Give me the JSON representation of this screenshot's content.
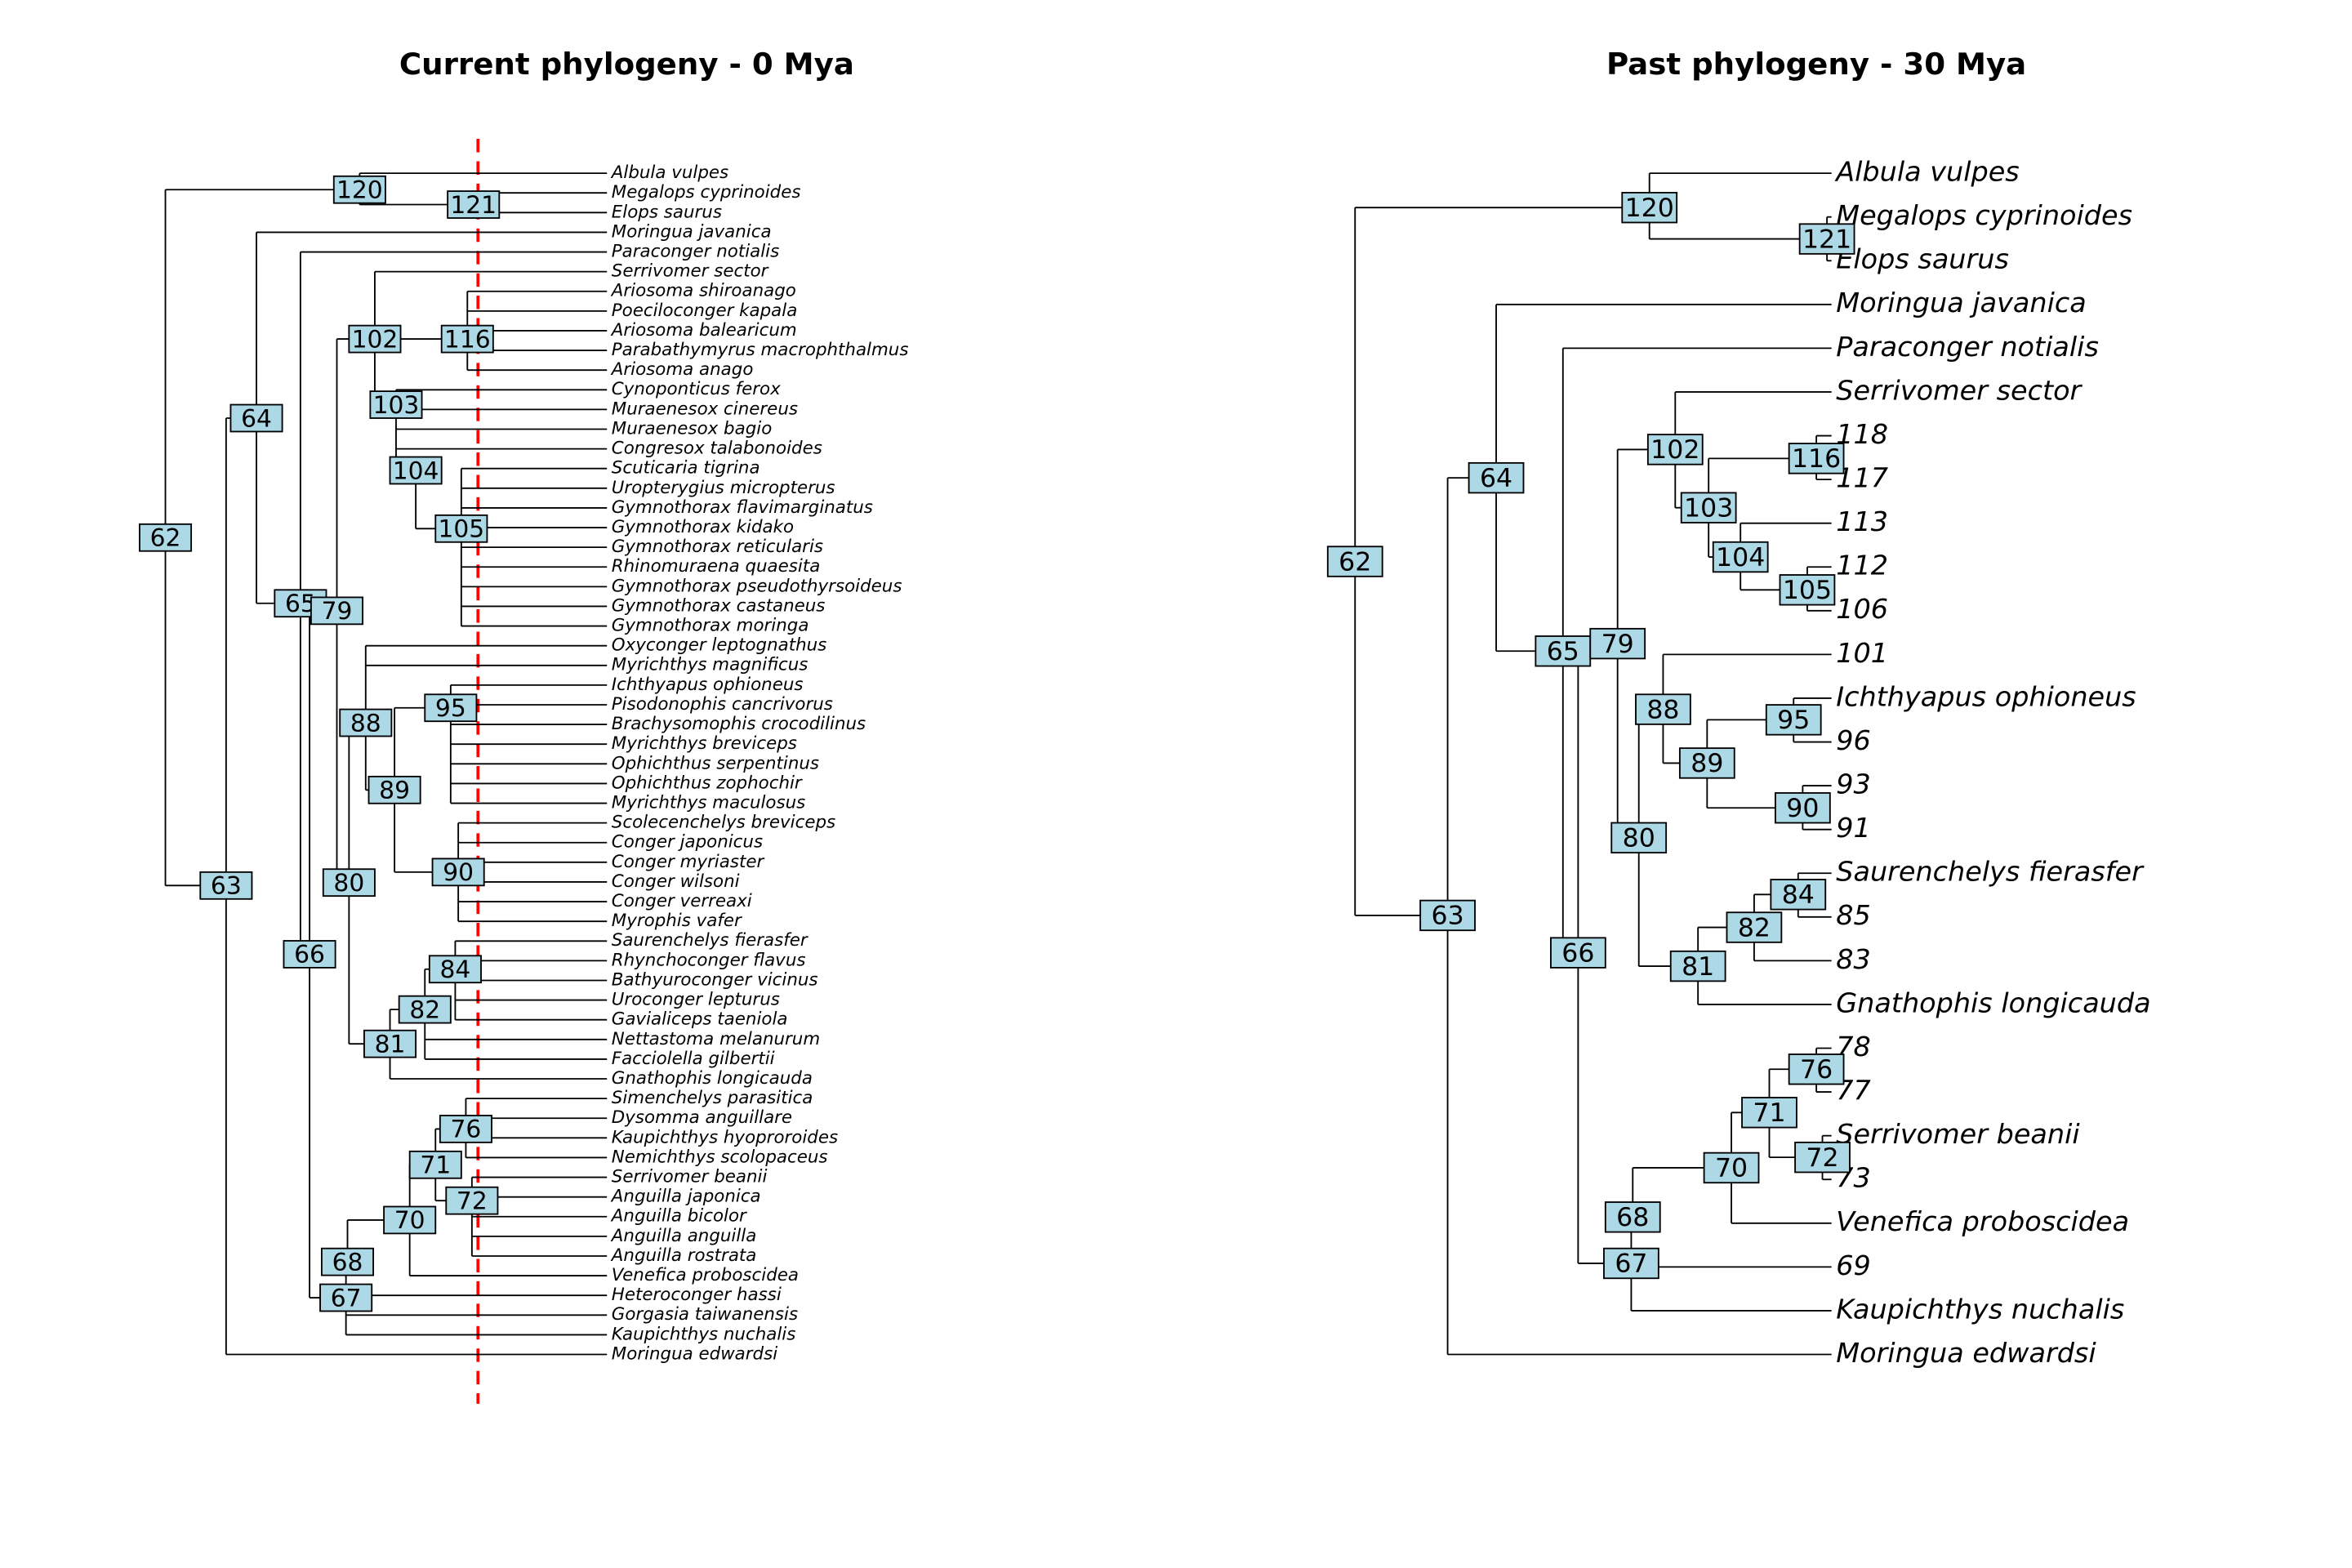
{
  "left": {
    "title": "Current phylogeny - 0 Mya",
    "tips": [
      "Albula vulpes",
      "Megalops cyprinoides",
      "Elops saurus",
      "Moringua javanica",
      "Paraconger notialis",
      "Serrivomer sector",
      "Ariosoma shiroanago",
      "Poeciloconger kapala",
      "Ariosoma balearicum",
      "Parabathymyrus macrophthalmus",
      "Ariosoma anago",
      "Cynoponticus ferox",
      "Muraenesox cinereus",
      "Muraenesox bagio",
      "Congresox talabonoides",
      "Scuticaria tigrina",
      "Uropterygius micropterus",
      "Gymnothorax flavimarginatus",
      "Gymnothorax kidako",
      "Gymnothorax reticularis",
      "Rhinomuraena quaesita",
      "Gymnothorax pseudothyrsoideus",
      "Gymnothorax castaneus",
      "Gymnothorax moringa",
      "Oxyconger leptognathus",
      "Myrichthys magnificus",
      "Ichthyapus ophioneus",
      "Pisodonophis cancrivorus",
      "Brachysomophis crocodilinus",
      "Myrichthys breviceps",
      "Ophichthus serpentinus",
      "Ophichthus zophochir",
      "Myrichthys maculosus",
      "Scolecenchelys breviceps",
      "Conger japonicus",
      "Conger myriaster",
      "Conger wilsoni",
      "Conger verreaxi",
      "Myrophis vafer",
      "Saurenchelys fierasfer",
      "Rhynchoconger flavus",
      "Bathyuroconger vicinus",
      "Uroconger lepturus",
      "Gavialiceps taeniola",
      "Nettastoma melanurum",
      "Facciolella gilbertii",
      "Gnathophis longicauda",
      "Simenchelys parasitica",
      "Dysomma anguillare",
      "Kaupichthys hyoproroides",
      "Nemichthys scolopaceus",
      "Serrivomer beanii",
      "Anguilla japonica",
      "Anguilla bicolor",
      "Anguilla anguilla",
      "Anguilla rostrata",
      "Venefica proboscidea",
      "Heteroconger hassi",
      "Gorgasia taiwanensis",
      "Kaupichthys nuchalis",
      "Moringua edwardsi"
    ],
    "nodes": [
      "120",
      "121",
      "62",
      "63",
      "64",
      "65",
      "79",
      "66",
      "102",
      "116",
      "103",
      "104",
      "105",
      "88",
      "95",
      "89",
      "90",
      "80",
      "84",
      "82",
      "81",
      "76",
      "71",
      "72",
      "70",
      "68",
      "67"
    ]
  },
  "right": {
    "title": "Past phylogeny - 30 Mya",
    "tips": [
      "Albula vulpes",
      "Megalops cyprinoides",
      "Elops saurus",
      "Moringua javanica",
      "Paraconger notialis",
      "Serrivomer sector",
      "118",
      "117",
      "113",
      "112",
      "106",
      "101",
      "Ichthyapus ophioneus",
      "96",
      "93",
      "91",
      "Saurenchelys fierasfer",
      "85",
      "83",
      "Gnathophis longicauda",
      "78",
      "77",
      "Serrivomer beanii",
      "73",
      "Venefica proboscidea",
      "69",
      "Kaupichthys nuchalis",
      "Moringua edwardsi"
    ],
    "nodes": [
      "120",
      "121",
      "62",
      "63",
      "64",
      "65",
      "79",
      "66",
      "102",
      "116",
      "103",
      "104",
      "105",
      "88",
      "95",
      "89",
      "90",
      "80",
      "84",
      "82",
      "81",
      "76",
      "71",
      "72",
      "70",
      "68",
      "67"
    ]
  }
}
